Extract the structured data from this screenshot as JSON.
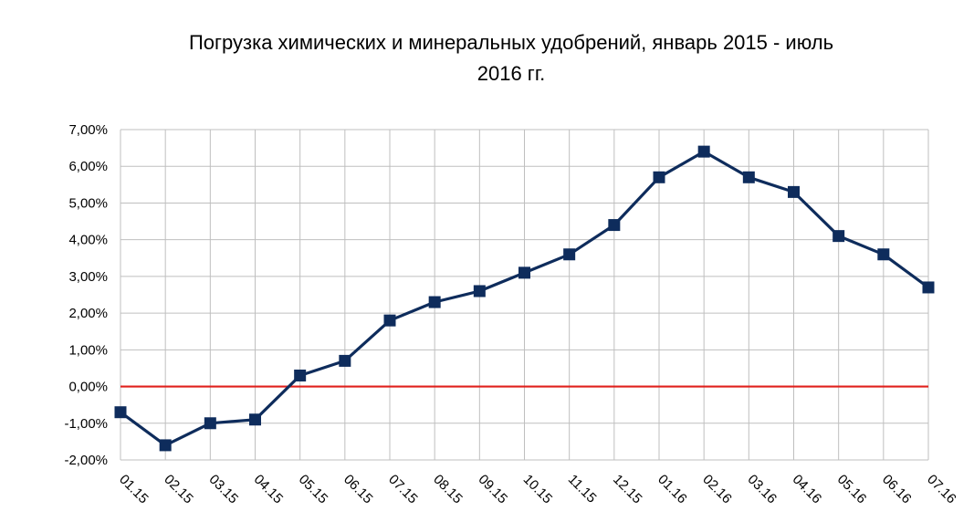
{
  "chart_data": {
    "type": "line",
    "title_lines": [
      "Погрузка химических и минеральных удобрений, январь 2015 - июль",
      "2016 гг."
    ],
    "categories": [
      "01.15",
      "02.15",
      "03.15",
      "04.15",
      "05.15",
      "06.15",
      "07.15",
      "08.15",
      "09.15",
      "10.15",
      "11.15",
      "12.15",
      "01.16",
      "02.16",
      "03.16",
      "04.16",
      "05.16",
      "06.16",
      "07.16"
    ],
    "series": [
      {
        "values": [
          -0.7,
          -1.6,
          -1.0,
          -0.9,
          0.3,
          0.7,
          1.8,
          2.3,
          2.6,
          3.1,
          3.6,
          4.4,
          5.7,
          6.4,
          5.7,
          5.3,
          4.1,
          3.6,
          2.7
        ],
        "color": "#0e2c5c"
      }
    ],
    "y_ticks": [
      "7,00%",
      "6,00%",
      "5,00%",
      "4,00%",
      "3,00%",
      "2,00%",
      "1,00%",
      "0,00%",
      "-1,00%",
      "-2,00%"
    ],
    "ylim": [
      -2,
      7
    ],
    "y_unit": "%",
    "grid": true,
    "zero_line_color": "#e0201c",
    "legend": "none"
  }
}
